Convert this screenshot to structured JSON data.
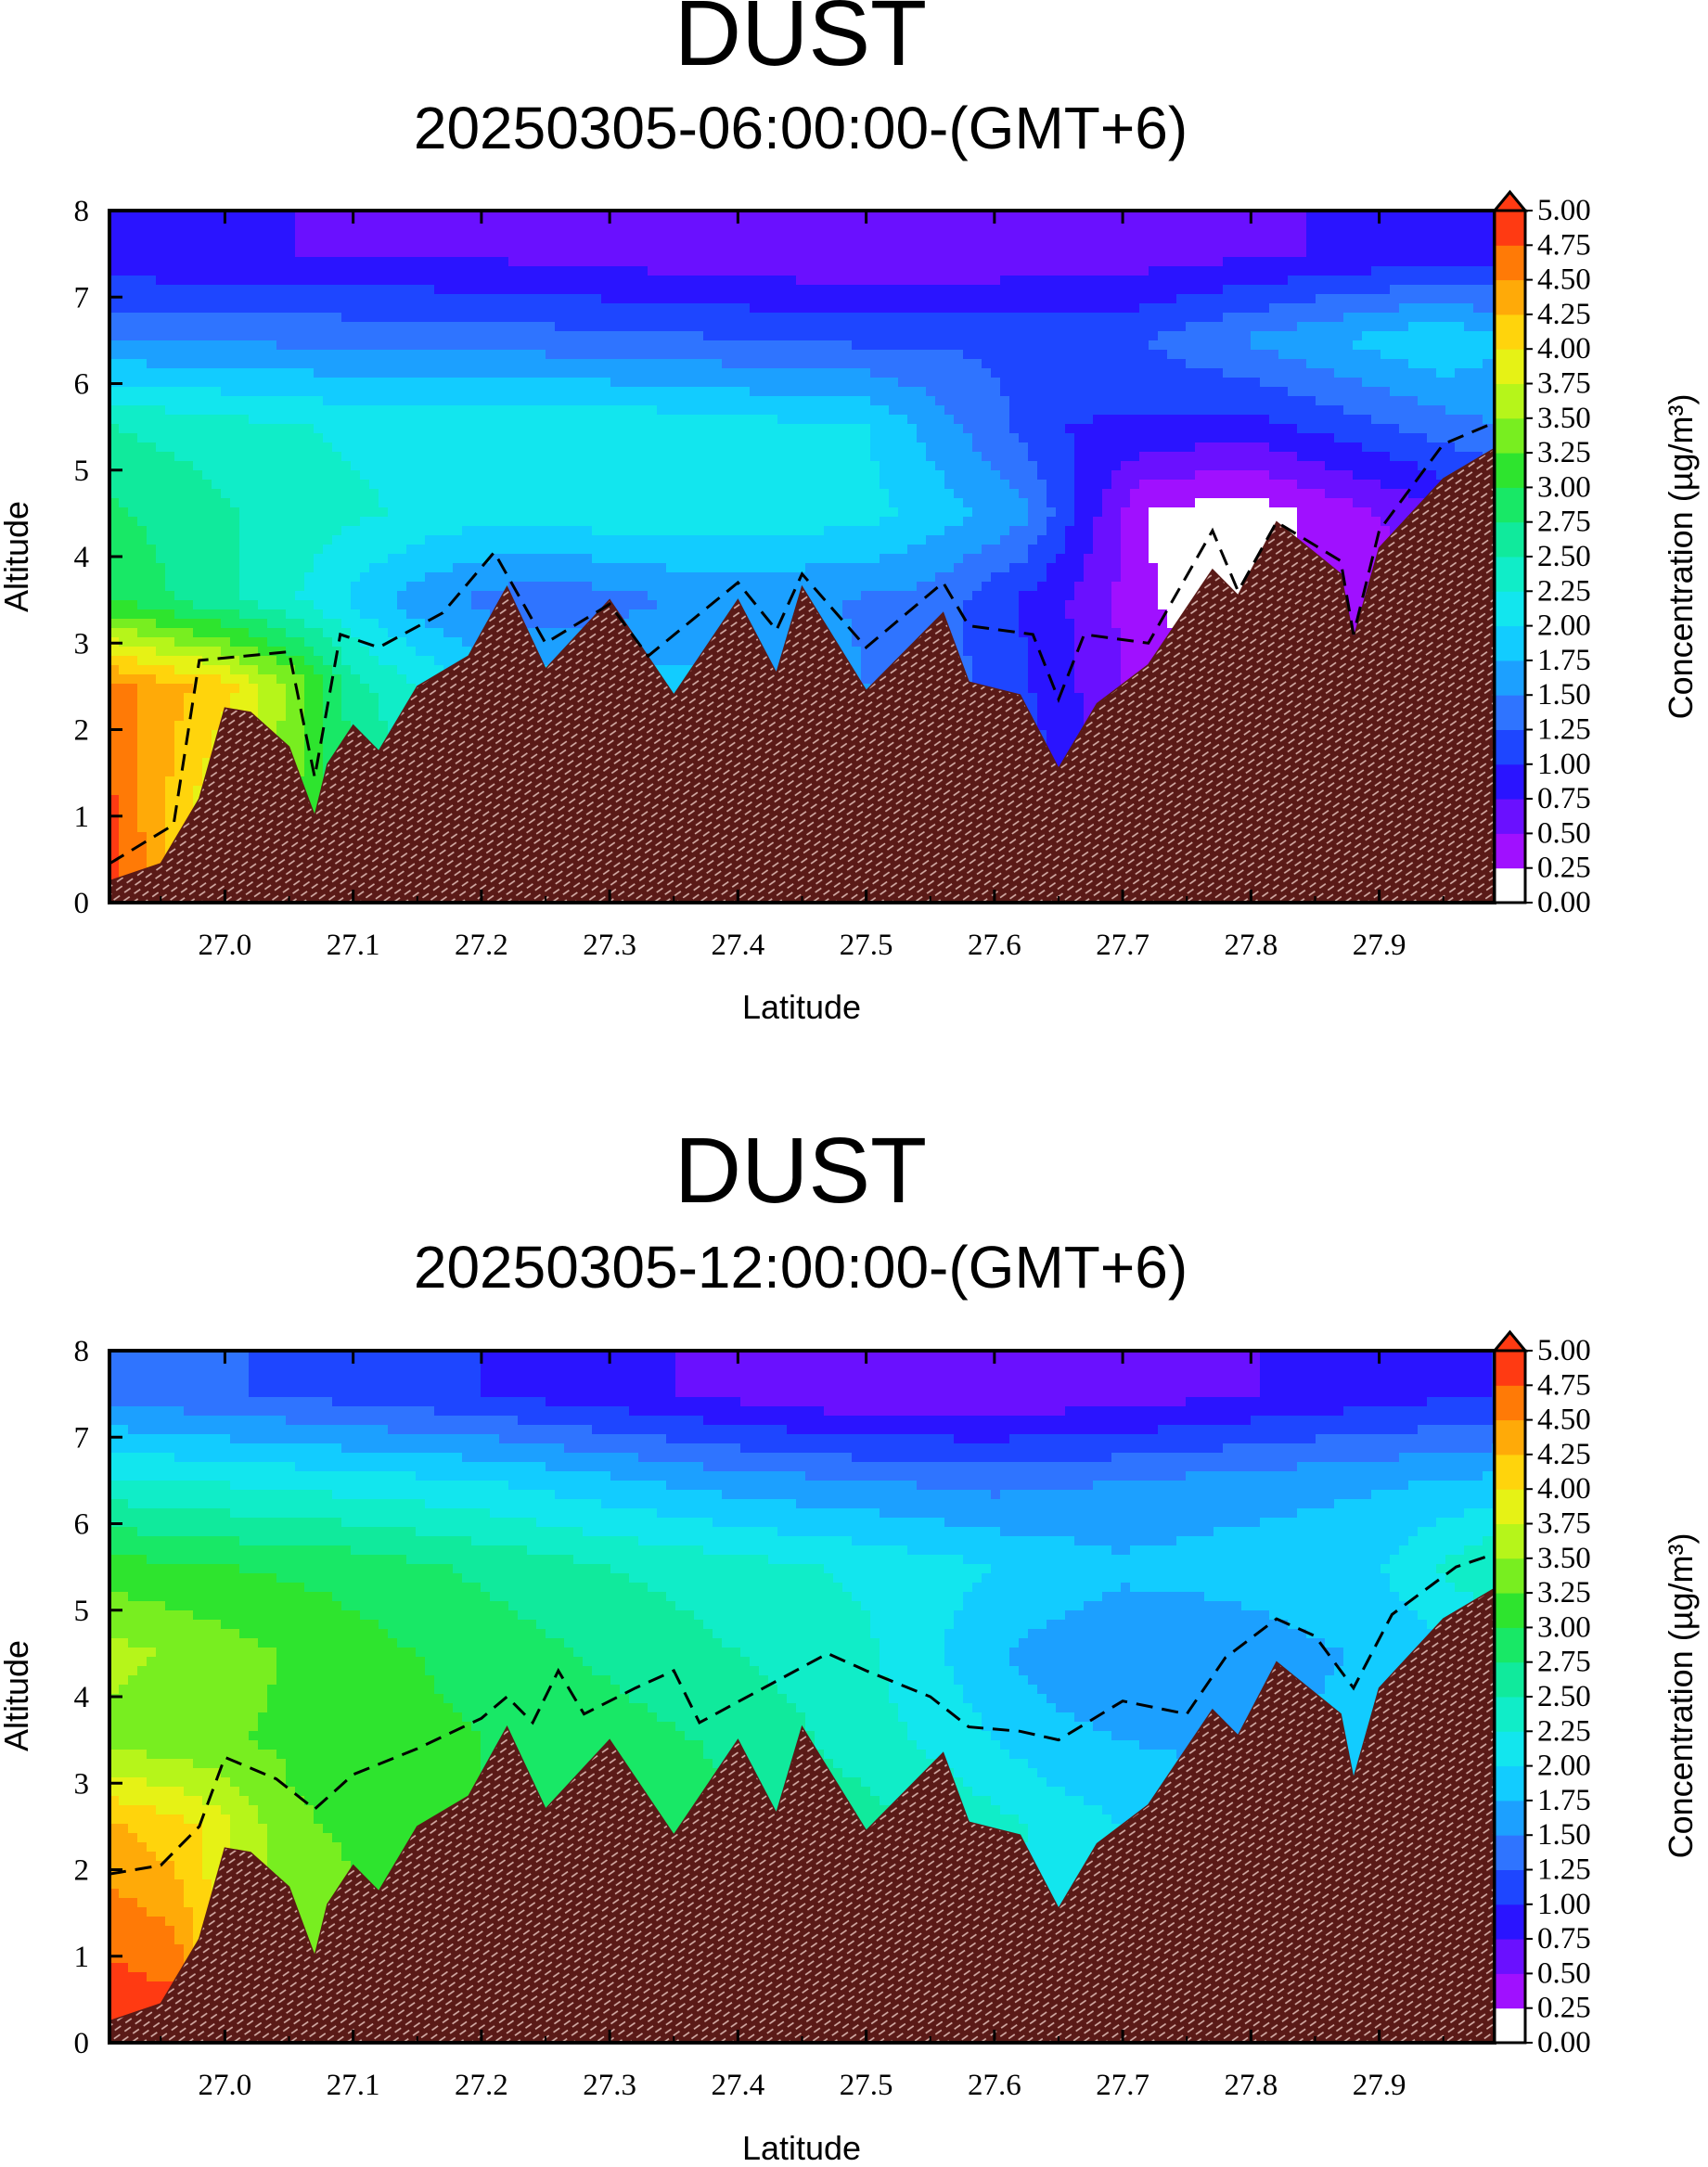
{
  "colors": {
    "terrain": "#5a1a17",
    "terrain_hatch": "#d9b3ad",
    "frame": "#000000",
    "dashed_line": "#000000"
  },
  "colorbar": {
    "levels": [
      "0.00",
      "0.25",
      "0.50",
      "0.75",
      "1.00",
      "1.25",
      "1.50",
      "1.75",
      "2.00",
      "2.25",
      "2.50",
      "2.75",
      "3.00",
      "3.25",
      "3.50",
      "3.75",
      "4.00",
      "4.25",
      "4.50",
      "4.75",
      "5.00"
    ],
    "colors": [
      "#ffffff",
      "#a010ff",
      "#6a10ff",
      "#2a14ff",
      "#1e46ff",
      "#2f74ff",
      "#1ca0ff",
      "#12ccff",
      "#12e6ee",
      "#10edc8",
      "#10ea9c",
      "#18e866",
      "#2ee42e",
      "#78ee20",
      "#b6f51a",
      "#e6f215",
      "#ffd40c",
      "#ffaa08",
      "#ff7a06",
      "#ff3a12"
    ],
    "label": "Concentration (µg/m³)"
  },
  "chart_data": [
    {
      "type": "heatmap",
      "title": "DUST",
      "subtitle": "20250305-06:00:00-(GMT+6)",
      "xlabel": "Latitude",
      "ylabel": "Altitude",
      "xlim": [
        26.91,
        27.99
      ],
      "ylim": [
        0,
        8
      ],
      "xticks": [
        "27.0",
        "27.1",
        "27.2",
        "27.3",
        "27.4",
        "27.5",
        "27.6",
        "27.7",
        "27.8",
        "27.9"
      ],
      "yticks": [
        "0",
        "1",
        "2",
        "3",
        "4",
        "5",
        "6",
        "7",
        "8"
      ],
      "zlim": [
        0,
        5
      ],
      "terrain_altitude": [
        [
          26.91,
          0.25
        ],
        [
          26.95,
          0.45
        ],
        [
          26.98,
          1.2
        ],
        [
          27.0,
          2.25
        ],
        [
          27.02,
          2.2
        ],
        [
          27.05,
          1.8
        ],
        [
          27.07,
          1.0
        ],
        [
          27.08,
          1.6
        ],
        [
          27.1,
          2.05
        ],
        [
          27.12,
          1.75
        ],
        [
          27.15,
          2.5
        ],
        [
          27.19,
          2.85
        ],
        [
          27.22,
          3.65
        ],
        [
          27.25,
          2.7
        ],
        [
          27.3,
          3.5
        ],
        [
          27.35,
          2.4
        ],
        [
          27.4,
          3.5
        ],
        [
          27.43,
          2.65
        ],
        [
          27.45,
          3.65
        ],
        [
          27.5,
          2.45
        ],
        [
          27.56,
          3.35
        ],
        [
          27.58,
          2.55
        ],
        [
          27.62,
          2.4
        ],
        [
          27.65,
          1.55
        ],
        [
          27.68,
          2.3
        ],
        [
          27.72,
          2.75
        ],
        [
          27.77,
          3.85
        ],
        [
          27.79,
          3.55
        ],
        [
          27.82,
          4.4
        ],
        [
          27.87,
          3.8
        ],
        [
          27.88,
          3.05
        ],
        [
          27.9,
          4.1
        ],
        [
          27.95,
          4.9
        ],
        [
          27.99,
          5.25
        ]
      ],
      "boundary_layer_top": [
        [
          26.91,
          0.45
        ],
        [
          26.96,
          0.9
        ],
        [
          26.98,
          2.8
        ],
        [
          27.05,
          2.9
        ],
        [
          27.07,
          1.45
        ],
        [
          27.09,
          3.1
        ],
        [
          27.12,
          2.95
        ],
        [
          27.17,
          3.35
        ],
        [
          27.21,
          4.05
        ],
        [
          27.25,
          3.0
        ],
        [
          27.3,
          3.45
        ],
        [
          27.33,
          2.85
        ],
        [
          27.4,
          3.7
        ],
        [
          27.43,
          3.15
        ],
        [
          27.45,
          3.8
        ],
        [
          27.5,
          2.95
        ],
        [
          27.56,
          3.7
        ],
        [
          27.58,
          3.2
        ],
        [
          27.63,
          3.1
        ],
        [
          27.65,
          2.35
        ],
        [
          27.67,
          3.1
        ],
        [
          27.72,
          3.0
        ],
        [
          27.77,
          4.3
        ],
        [
          27.79,
          3.6
        ],
        [
          27.82,
          4.4
        ],
        [
          27.87,
          3.95
        ],
        [
          27.88,
          3.1
        ],
        [
          27.9,
          4.3
        ],
        [
          27.95,
          5.3
        ],
        [
          27.99,
          5.55
        ]
      ],
      "concentration_rows": [
        {
          "altitude": 0.5,
          "values": [
            [
              26.91,
              4.9
            ],
            [
              27.0,
              3.5
            ],
            [
              27.2,
              2.3
            ],
            [
              27.4,
              1.9
            ],
            [
              27.6,
              1.5
            ],
            [
              27.75,
              0.2
            ],
            [
              27.9,
              0.3
            ],
            [
              27.99,
              0.6
            ]
          ]
        },
        {
          "altitude": 2.5,
          "values": [
            [
              26.91,
              4.6
            ],
            [
              27.0,
              4.1
            ],
            [
              27.05,
              3.5
            ],
            [
              27.1,
              2.6
            ],
            [
              27.2,
              1.9
            ],
            [
              27.4,
              1.8
            ],
            [
              27.6,
              1.2
            ],
            [
              27.7,
              0.5
            ],
            [
              27.8,
              0.2
            ],
            [
              27.99,
              0.4
            ]
          ]
        },
        {
          "altitude": 3.5,
          "values": [
            [
              26.91,
              3.0
            ],
            [
              27.05,
              2.3
            ],
            [
              27.15,
              1.6
            ],
            [
              27.25,
              1.3
            ],
            [
              27.4,
              1.6
            ],
            [
              27.55,
              1.4
            ],
            [
              27.65,
              0.8
            ],
            [
              27.75,
              0.1
            ],
            [
              27.85,
              0.3
            ],
            [
              27.99,
              0.6
            ]
          ]
        },
        {
          "altitude": 4.5,
          "values": [
            [
              26.91,
              2.8
            ],
            [
              27.05,
              2.4
            ],
            [
              27.2,
              2.1
            ],
            [
              27.35,
              2.2
            ],
            [
              27.5,
              2.1
            ],
            [
              27.62,
              1.6
            ],
            [
              27.72,
              0.2
            ],
            [
              27.8,
              0.1
            ],
            [
              27.9,
              0.5
            ],
            [
              27.99,
              0.9
            ]
          ]
        },
        {
          "altitude": 5.5,
          "values": [
            [
              26.91,
              2.5
            ],
            [
              27.1,
              2.2
            ],
            [
              27.3,
              2.2
            ],
            [
              27.5,
              2.0
            ],
            [
              27.65,
              1.0
            ],
            [
              27.8,
              0.9
            ],
            [
              27.99,
              1.5
            ]
          ]
        },
        {
          "altitude": 6.5,
          "values": [
            [
              26.91,
              1.5
            ],
            [
              27.2,
              1.4
            ],
            [
              27.5,
              1.2
            ],
            [
              27.7,
              1.2
            ],
            [
              27.85,
              1.7
            ],
            [
              27.95,
              2.0
            ],
            [
              27.99,
              1.8
            ]
          ]
        },
        {
          "altitude": 7.5,
          "values": [
            [
              26.91,
              0.8
            ],
            [
              27.2,
              0.7
            ],
            [
              27.5,
              0.5
            ],
            [
              27.7,
              0.6
            ],
            [
              27.99,
              0.9
            ]
          ]
        }
      ]
    },
    {
      "type": "heatmap",
      "title": "DUST",
      "subtitle": "20250305-12:00:00-(GMT+6)",
      "xlabel": "Latitude",
      "ylabel": "Altitude",
      "xlim": [
        26.91,
        27.99
      ],
      "ylim": [
        0,
        8
      ],
      "xticks": [
        "27.0",
        "27.1",
        "27.2",
        "27.3",
        "27.4",
        "27.5",
        "27.6",
        "27.7",
        "27.8",
        "27.9"
      ],
      "yticks": [
        "0",
        "1",
        "2",
        "3",
        "4",
        "5",
        "6",
        "7",
        "8"
      ],
      "zlim": [
        0,
        5
      ],
      "terrain_altitude": [
        [
          26.91,
          0.25
        ],
        [
          26.95,
          0.45
        ],
        [
          26.98,
          1.2
        ],
        [
          27.0,
          2.25
        ],
        [
          27.02,
          2.2
        ],
        [
          27.05,
          1.8
        ],
        [
          27.07,
          1.0
        ],
        [
          27.08,
          1.6
        ],
        [
          27.1,
          2.05
        ],
        [
          27.12,
          1.75
        ],
        [
          27.15,
          2.5
        ],
        [
          27.19,
          2.85
        ],
        [
          27.22,
          3.65
        ],
        [
          27.25,
          2.7
        ],
        [
          27.3,
          3.5
        ],
        [
          27.35,
          2.4
        ],
        [
          27.4,
          3.5
        ],
        [
          27.43,
          2.65
        ],
        [
          27.45,
          3.65
        ],
        [
          27.5,
          2.45
        ],
        [
          27.56,
          3.35
        ],
        [
          27.58,
          2.55
        ],
        [
          27.62,
          2.4
        ],
        [
          27.65,
          1.55
        ],
        [
          27.68,
          2.3
        ],
        [
          27.72,
          2.75
        ],
        [
          27.77,
          3.85
        ],
        [
          27.79,
          3.55
        ],
        [
          27.82,
          4.4
        ],
        [
          27.87,
          3.8
        ],
        [
          27.88,
          3.05
        ],
        [
          27.9,
          4.1
        ],
        [
          27.95,
          4.9
        ],
        [
          27.99,
          5.25
        ]
      ],
      "boundary_layer_top": [
        [
          26.91,
          1.95
        ],
        [
          26.95,
          2.05
        ],
        [
          26.98,
          2.5
        ],
        [
          27.0,
          3.3
        ],
        [
          27.04,
          3.05
        ],
        [
          27.07,
          2.7
        ],
        [
          27.1,
          3.1
        ],
        [
          27.15,
          3.4
        ],
        [
          27.2,
          3.75
        ],
        [
          27.22,
          4.0
        ],
        [
          27.24,
          3.7
        ],
        [
          27.26,
          4.3
        ],
        [
          27.28,
          3.8
        ],
        [
          27.32,
          4.1
        ],
        [
          27.35,
          4.3
        ],
        [
          27.37,
          3.7
        ],
        [
          27.42,
          4.1
        ],
        [
          27.47,
          4.5
        ],
        [
          27.5,
          4.3
        ],
        [
          27.55,
          4.0
        ],
        [
          27.58,
          3.65
        ],
        [
          27.62,
          3.6
        ],
        [
          27.65,
          3.5
        ],
        [
          27.7,
          3.95
        ],
        [
          27.75,
          3.8
        ],
        [
          27.78,
          4.45
        ],
        [
          27.82,
          4.9
        ],
        [
          27.85,
          4.7
        ],
        [
          27.88,
          4.1
        ],
        [
          27.91,
          4.95
        ],
        [
          27.96,
          5.5
        ],
        [
          27.99,
          5.65
        ]
      ],
      "concentration_rows": [
        {
          "altitude": 0.5,
          "values": [
            [
              26.91,
              4.9
            ],
            [
              26.96,
              4.8
            ],
            [
              27.0,
              3.8
            ],
            [
              27.2,
              3.0
            ],
            [
              27.4,
              2.8
            ],
            [
              27.6,
              2.2
            ],
            [
              27.8,
              2.0
            ],
            [
              27.99,
              2.0
            ]
          ]
        },
        {
          "altitude": 2.5,
          "values": [
            [
              26.91,
              4.3
            ],
            [
              26.98,
              4.0
            ],
            [
              27.05,
              3.3
            ],
            [
              27.2,
              3.0
            ],
            [
              27.4,
              2.8
            ],
            [
              27.55,
              2.5
            ],
            [
              27.7,
              2.0
            ],
            [
              27.85,
              1.9
            ],
            [
              27.99,
              2.0
            ]
          ]
        },
        {
          "altitude": 3.5,
          "values": [
            [
              26.91,
              3.4
            ],
            [
              27.05,
              3.2
            ],
            [
              27.2,
              3.0
            ],
            [
              27.4,
              2.7
            ],
            [
              27.55,
              2.2
            ],
            [
              27.65,
              1.8
            ],
            [
              27.75,
              1.7
            ],
            [
              27.85,
              1.8
            ],
            [
              27.99,
              2.0
            ]
          ]
        },
        {
          "altitude": 4.5,
          "values": [
            [
              26.91,
              3.6
            ],
            [
              27.1,
              3.1
            ],
            [
              27.3,
              2.7
            ],
            [
              27.5,
              2.3
            ],
            [
              27.62,
              1.7
            ],
            [
              27.75,
              1.5
            ],
            [
              27.9,
              1.8
            ],
            [
              27.99,
              2.0
            ]
          ]
        },
        {
          "altitude": 5.5,
          "values": [
            [
              26.91,
              3.1
            ],
            [
              27.1,
              2.9
            ],
            [
              27.3,
              2.5
            ],
            [
              27.5,
              2.2
            ],
            [
              27.7,
              1.8
            ],
            [
              27.9,
              2.0
            ],
            [
              27.99,
              2.5
            ]
          ]
        },
        {
          "altitude": 6.5,
          "values": [
            [
              26.91,
              2.3
            ],
            [
              27.2,
              2.0
            ],
            [
              27.4,
              1.6
            ],
            [
              27.6,
              1.4
            ],
            [
              27.8,
              1.6
            ],
            [
              27.99,
              1.8
            ]
          ]
        },
        {
          "altitude": 7.5,
          "values": [
            [
              26.91,
              1.4
            ],
            [
              27.2,
              1.0
            ],
            [
              27.5,
              0.5
            ],
            [
              27.7,
              0.6
            ],
            [
              27.99,
              1.0
            ]
          ]
        }
      ]
    }
  ]
}
